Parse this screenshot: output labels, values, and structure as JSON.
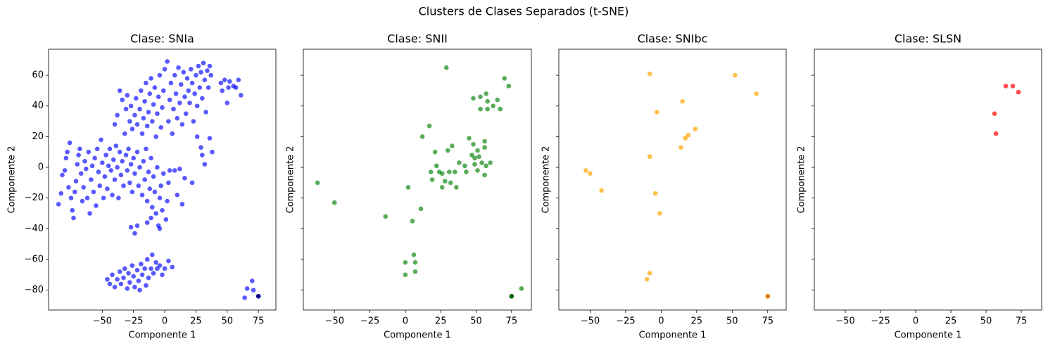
{
  "title": "Clusters de Clases Separados (t-SNE)",
  "sharey": true,
  "chart_data": [
    {
      "type": "scatter",
      "title": "Clase: SNIa",
      "xlabel": "Componente 1",
      "ylabel": "Componente 2",
      "xlim": [
        -93,
        89
      ],
      "ylim": [
        -93,
        77
      ],
      "xticks": [
        {
          "value": -50,
          "label": "−50"
        },
        {
          "value": -25,
          "label": "−25"
        },
        0,
        25,
        50,
        75
      ],
      "yticks": [
        {
          "value": -80,
          "label": "−80"
        },
        {
          "value": -60,
          "label": "−60"
        },
        {
          "value": -40,
          "label": "−40"
        },
        {
          "value": -20,
          "label": "−20"
        },
        0,
        20,
        40,
        60
      ],
      "series": [
        {
          "color": "#0000ff",
          "alpha": 0.65,
          "x": [
            -85,
            -83,
            -82,
            -80,
            -79,
            -78,
            -76,
            -77,
            -75,
            -74,
            -73,
            -72,
            -71,
            -70,
            -69,
            -68,
            -67,
            -66,
            -65,
            -64,
            -63,
            -62,
            -61,
            -60,
            -59,
            -58,
            -57,
            -56,
            -55,
            -54,
            -53,
            -52,
            -51,
            -50,
            -49,
            -48,
            -47,
            -46,
            -45,
            -44,
            -43,
            -42,
            -41,
            -40,
            -39,
            -38,
            -37,
            -36,
            -35,
            -34,
            -33,
            -31,
            -30,
            -29,
            -28,
            -27,
            -26,
            -25,
            -24,
            -22,
            -21,
            -20,
            -18,
            -17,
            -16,
            -15,
            -14,
            -13,
            -12,
            -11,
            -10,
            -9,
            -8,
            -7,
            -6,
            -5,
            -4,
            -3,
            -2,
            -1,
            1,
            2,
            3,
            4,
            -27,
            -24,
            -22,
            -14,
            -11,
            -4,
            8,
            10,
            12,
            14,
            16,
            22,
            26,
            29,
            32,
            36,
            38,
            30,
            -40,
            -38,
            -36,
            -34,
            -32,
            -31,
            -30,
            -28,
            -27,
            -26,
            -24,
            -23,
            -22,
            -20,
            -19,
            -18,
            -17,
            -16,
            -15,
            -14,
            -13,
            -12,
            -11,
            -10,
            -9,
            -8,
            -7,
            -6,
            -5,
            -4,
            -3,
            -2,
            -1,
            0,
            2,
            3,
            4,
            5,
            6,
            7,
            8,
            9,
            10,
            11,
            12,
            13,
            14,
            15,
            16,
            17,
            18,
            19,
            20,
            21,
            22,
            23,
            24,
            25,
            26,
            27,
            28,
            29,
            30,
            31,
            32,
            33,
            34,
            35,
            36,
            37,
            45,
            46,
            48,
            50,
            51,
            52,
            55,
            57,
            59,
            61,
            -46,
            -44,
            -42,
            -40,
            -38,
            -36,
            -35,
            -33,
            -32,
            -30,
            -29,
            -28,
            -26,
            -25,
            -24,
            -22,
            -21,
            -20,
            -19,
            -18,
            -16,
            -15,
            -14,
            -13,
            -11,
            -10,
            -9,
            -7,
            -6,
            -4,
            -2,
            0,
            3,
            6,
            64,
            66,
            70,
            71
          ],
          "values": [
            -24,
            -17,
            -5,
            -2,
            6,
            10,
            16,
            -13,
            -20,
            -28,
            -33,
            -16,
            -9,
            2,
            8,
            12,
            -4,
            -22,
            -13,
            4,
            -1,
            -20,
            10,
            -30,
            -8,
            1,
            -16,
            6,
            -25,
            12,
            -3,
            -12,
            18,
            3,
            -20,
            -6,
            8,
            -14,
            1,
            12,
            -2,
            -18,
            5,
            -8,
            14,
            0,
            -20,
            10,
            -5,
            4,
            -12,
            8,
            -2,
            12,
            -10,
            2,
            -16,
            6,
            -4,
            10,
            -12,
            0,
            -18,
            4,
            -8,
            12,
            -22,
            -3,
            -14,
            6,
            -26,
            -6,
            -16,
            -30,
            0,
            -38,
            -20,
            -12,
            -28,
            -4,
            -34,
            -22,
            -10,
            -2,
            -39,
            -43,
            -38,
            -36,
            -33,
            -40,
            -2,
            -18,
            -1,
            -24,
            -7,
            -10,
            20,
            13,
            2,
            19,
            10,
            8,
            28,
            34,
            50,
            44,
            22,
            38,
            47,
            30,
            40,
            25,
            34,
            45,
            28,
            38,
            50,
            22,
            32,
            43,
            55,
            27,
            36,
            48,
            58,
            30,
            41,
            52,
            20,
            35,
            46,
            60,
            26,
            39,
            50,
            64,
            69,
            30,
            44,
            55,
            22,
            38,
            60,
            48,
            32,
            65,
            42,
            54,
            28,
            62,
            46,
            35,
            58,
            50,
            42,
            64,
            55,
            30,
            48,
            60,
            40,
            66,
            52,
            62,
            45,
            68,
            57,
            36,
            63,
            52,
            66,
            60,
            55,
            50,
            57,
            42,
            52,
            56,
            53,
            52,
            57,
            47,
            -73,
            -76,
            -70,
            -78,
            -73,
            -68,
            -76,
            -72,
            -66,
            -79,
            -69,
            -75,
            -64,
            -71,
            -78,
            -67,
            -74,
            -80,
            -63,
            -70,
            -66,
            -77,
            -60,
            -72,
            -66,
            -57,
            -69,
            -62,
            -66,
            -64,
            -70,
            -66,
            -61,
            -65,
            -85,
            -79,
            -74,
            -80
          ]
        },
        {
          "color": "#00008b",
          "alpha": 1,
          "x": [
            75
          ],
          "values": [
            -84
          ]
        }
      ]
    },
    {
      "type": "scatter",
      "title": "Clase: SNII",
      "xlabel": "Componente 1",
      "ylabel": "Componente 2",
      "xlim": [
        -72,
        89
      ],
      "xticks": [
        {
          "value": -50,
          "label": "−50"
        },
        {
          "value": -25,
          "label": "−25"
        },
        0,
        25,
        50,
        75
      ],
      "series": [
        {
          "color": "#008000",
          "alpha": 0.65,
          "x": [
            -62,
            -50,
            -14,
            2,
            11,
            5,
            0,
            0,
            6,
            7,
            7,
            29,
            12,
            17,
            21,
            30,
            33,
            22,
            24,
            19,
            26,
            28,
            32,
            36,
            18,
            26,
            31,
            35,
            38,
            42,
            43,
            45,
            48,
            47,
            49,
            51,
            52,
            56,
            56,
            54,
            49,
            51,
            56,
            57,
            60,
            48,
            53,
            57,
            58,
            53,
            58,
            62,
            65,
            67,
            70,
            73,
            82
          ],
          "values": [
            -10,
            -23,
            -32,
            -13,
            -27,
            -35,
            -62,
            -70,
            -57,
            -62,
            -68,
            65,
            20,
            27,
            10,
            11,
            14,
            1,
            -3,
            -8,
            -13,
            -9,
            -10,
            -13,
            -3,
            -4,
            -3,
            -3,
            3,
            1,
            -3,
            19,
            15,
            8,
            6,
            11,
            7,
            17,
            13,
            3,
            2,
            -2,
            -5,
            1,
            3,
            45,
            46,
            48,
            43,
            38,
            38,
            40,
            44,
            38,
            58,
            53,
            -79
          ]
        },
        {
          "color": "#006400",
          "alpha": 1,
          "x": [
            75
          ],
          "values": [
            -84
          ]
        }
      ]
    },
    {
      "type": "scatter",
      "title": "Clase: SNIbc",
      "xlabel": "Componente 1",
      "ylabel": "Componente 2",
      "xlim": [
        -72,
        88
      ],
      "xticks": [
        {
          "value": -50,
          "label": "−50"
        },
        {
          "value": -25,
          "label": "−25"
        },
        0,
        25,
        50,
        75
      ],
      "series": [
        {
          "color": "#ffa500",
          "alpha": 0.7,
          "x": [
            -8,
            52,
            67,
            -3,
            15,
            -8,
            14,
            17,
            19,
            24,
            -53,
            -50,
            -42,
            -4,
            -1,
            -8,
            -10
          ],
          "values": [
            61,
            60,
            48,
            36,
            43,
            7,
            13,
            19,
            21,
            25,
            -2,
            -4,
            -15,
            -17,
            -30,
            -69,
            -73
          ]
        },
        {
          "color": "#e08000",
          "alpha": 1,
          "x": [
            75
          ],
          "values": [
            -84
          ]
        }
      ]
    },
    {
      "type": "scatter",
      "title": "Clase: SLSN",
      "xlabel": "Componente 1",
      "ylabel": "Componente 2",
      "xlim": [
        -72,
        89.5
      ],
      "xticks": [
        {
          "value": -50,
          "label": "−50"
        },
        {
          "value": -25,
          "label": "−25"
        },
        0,
        25,
        50,
        75
      ],
      "series": [
        {
          "color": "#ff0000",
          "alpha": 0.7,
          "x": [
            64,
            69,
            73,
            56,
            57
          ],
          "values": [
            53,
            53,
            49,
            35,
            22
          ]
        }
      ]
    }
  ]
}
